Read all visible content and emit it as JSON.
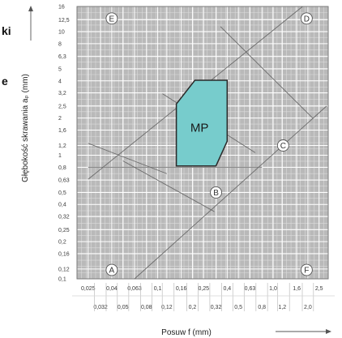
{
  "side_text": [
    "ki",
    "e"
  ],
  "chart_data": {
    "type": "region",
    "xlabel": "Posuw f (mm)",
    "ylabel": "Głębokość skrawania aₚ (mm)",
    "x_scale": "log",
    "y_scale": "log",
    "xlim": [
      0.02,
      3.0
    ],
    "ylim": [
      0.1,
      16
    ],
    "x_ticks_top": [
      "0,025",
      "0,04",
      "0,063",
      "0,1",
      "0,16",
      "0,25",
      "0,4",
      "0,63",
      "1,0",
      "1,6",
      "2,5"
    ],
    "x_ticks_bottom": [
      "0,032",
      "0,05",
      "0,08",
      "0,12",
      "0,2",
      "0,32",
      "0,5",
      "0,8",
      "1,2",
      "2,0"
    ],
    "y_ticks": [
      "0,1",
      "0,12",
      "0,16",
      "0,2",
      "0,25",
      "0,32",
      "0,4",
      "0,5",
      "0,63",
      "0,8",
      "1",
      "1,2",
      "1,6",
      "2",
      "2,5",
      "3,2",
      "4",
      "5",
      "6,3",
      "8",
      "10",
      "12,5",
      "16"
    ],
    "region": {
      "name": "MP",
      "color": "#77cccc",
      "polygon": [
        [
          0.145,
          0.82
        ],
        [
          0.145,
          2.6
        ],
        [
          0.21,
          4.05
        ],
        [
          0.4,
          4.05
        ],
        [
          0.4,
          1.3
        ],
        [
          0.32,
          0.82
        ]
      ]
    },
    "corner_labels": [
      "A",
      "B",
      "C",
      "D",
      "E",
      "F"
    ],
    "arrows": {
      "x": true,
      "y": true
    },
    "grid": true
  }
}
